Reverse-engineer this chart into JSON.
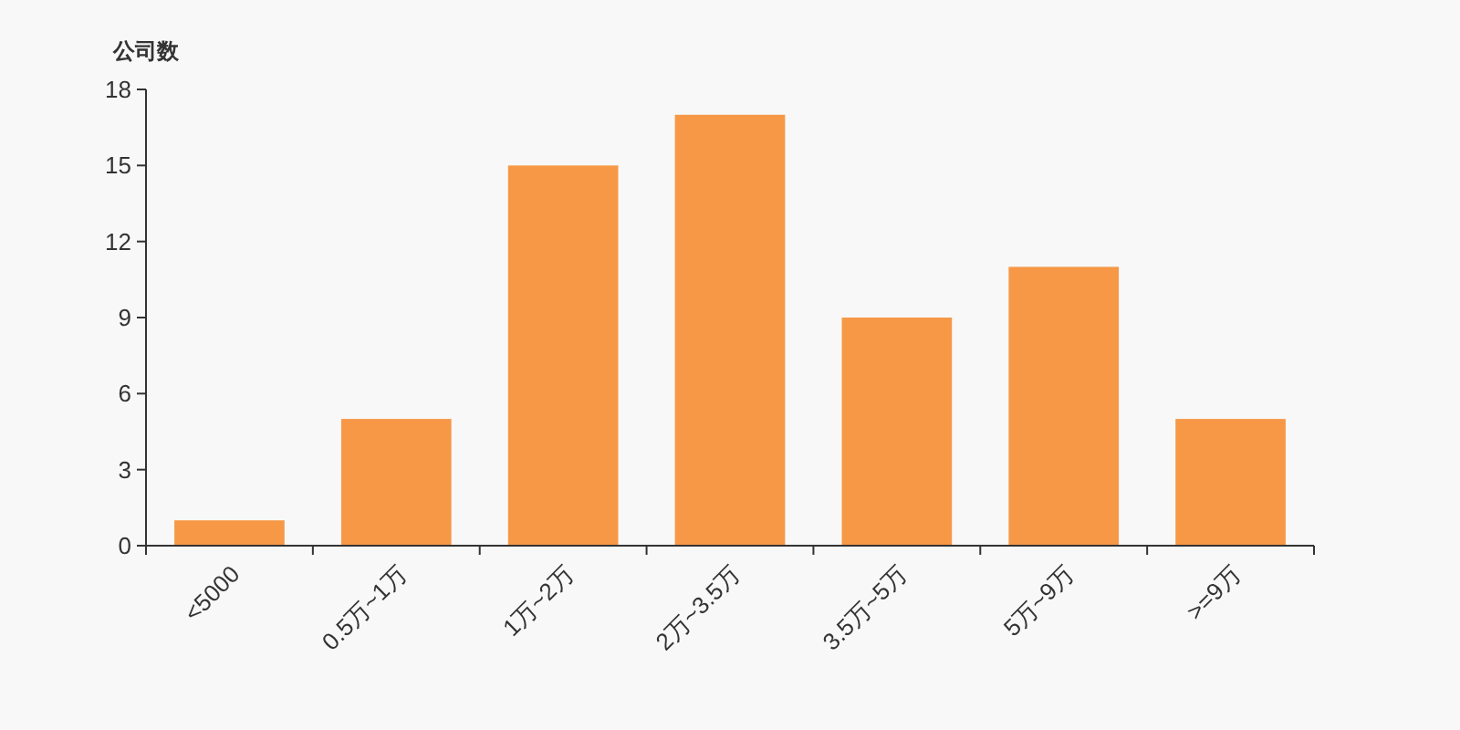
{
  "chart_data": {
    "type": "bar",
    "ylabel": "公司数",
    "categories": [
      "<5000",
      "0.5万~1万",
      "1万~2万",
      "2万~3.5万",
      "3.5万~5万",
      "5万~9万",
      ">=9万"
    ],
    "values": [
      1,
      5,
      15,
      17,
      9,
      11,
      5
    ],
    "color": "#f79846",
    "ylim": [
      0,
      18
    ],
    "yticks": [
      0,
      3,
      6,
      9,
      12,
      15,
      18
    ],
    "grid": false
  }
}
